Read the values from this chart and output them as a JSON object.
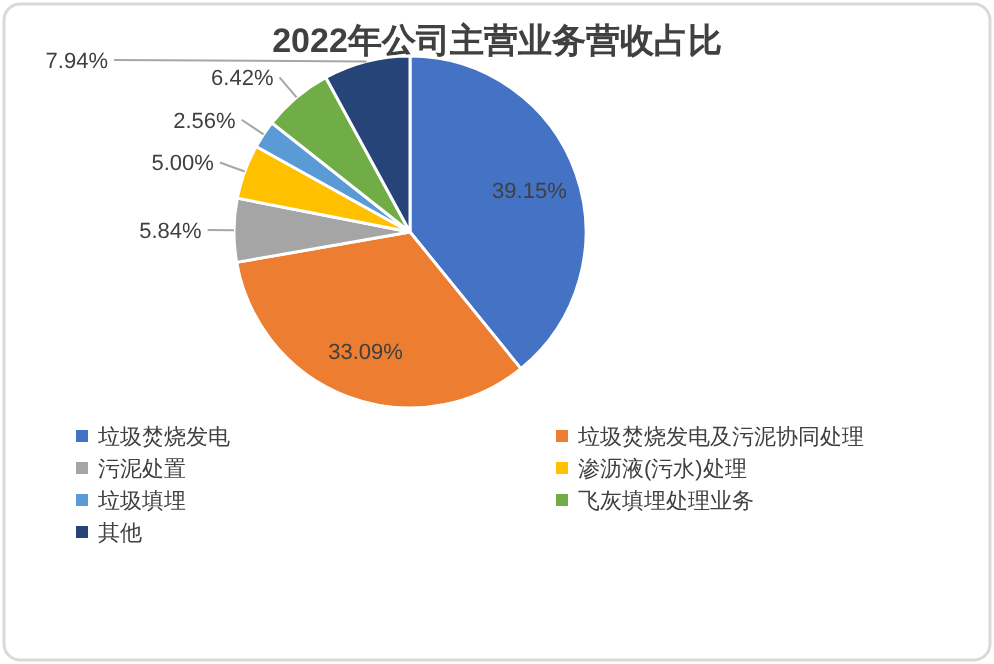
{
  "chart_data": {
    "type": "pie",
    "title": "2022年公司主营业务营收占比",
    "categories": [
      "垃圾焚烧发电",
      "垃圾焚烧发电及污泥协同处理",
      "污泥处置",
      "渗沥液(污水)处理",
      "垃圾填埋",
      "飞灰填埋处理业务",
      "其他"
    ],
    "values": [
      39.15,
      33.09,
      5.84,
      5.0,
      2.56,
      6.42,
      7.94
    ],
    "colors": [
      "#4472c4",
      "#ed7d31",
      "#a5a5a5",
      "#ffc000",
      "#5b9bd5",
      "#70ad47",
      "#264478"
    ],
    "value_labels": [
      "39.15%",
      "33.09%",
      "5.84%",
      "5.00%",
      "2.56%",
      "6.42%",
      "7.94%"
    ],
    "legend": "bottom"
  }
}
